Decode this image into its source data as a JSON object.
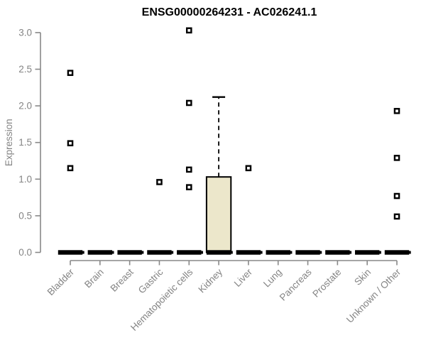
{
  "chart_data": {
    "type": "boxplot",
    "title": "ENSG00000264231 - AC026241.1",
    "xlabel": "",
    "ylabel": "Expression",
    "ylim": [
      0,
      3.05
    ],
    "grid": false,
    "legend": false,
    "yticks": [
      {
        "value": 0.0,
        "label": "0.0"
      },
      {
        "value": 0.5,
        "label": "0.5"
      },
      {
        "value": 1.0,
        "label": "1.0"
      },
      {
        "value": 1.5,
        "label": "1.5"
      },
      {
        "value": 2.0,
        "label": "2.0"
      },
      {
        "value": 2.5,
        "label": "2.5"
      },
      {
        "value": 3.0,
        "label": "3.0"
      }
    ],
    "colors": {
      "box_fill": "#ECE7CB",
      "box_stroke": "#000000",
      "median": "#000000",
      "axis": "#888888",
      "tick_label": "#848484",
      "title": "#000000",
      "outlier": "#000000"
    },
    "categories": [
      {
        "label": "Bladder",
        "q1": 0,
        "median": 0,
        "q3": 0,
        "whisker_high": null,
        "outliers": [
          2.45,
          1.49,
          1.15
        ]
      },
      {
        "label": "Brain",
        "q1": 0,
        "median": 0,
        "q3": 0,
        "whisker_high": null,
        "outliers": []
      },
      {
        "label": "Breast",
        "q1": 0,
        "median": 0,
        "q3": 0,
        "whisker_high": null,
        "outliers": []
      },
      {
        "label": "Gastric",
        "q1": 0,
        "median": 0,
        "q3": 0,
        "whisker_high": null,
        "outliers": [
          0.96
        ]
      },
      {
        "label": "Hematopoietic cells",
        "q1": 0,
        "median": 0,
        "q3": 0,
        "whisker_high": null,
        "outliers": [
          3.03,
          2.04,
          1.13,
          0.89
        ]
      },
      {
        "label": "Kidney",
        "q1": 0,
        "median": 0,
        "q3": 1.03,
        "whisker_high": 2.12,
        "outliers": []
      },
      {
        "label": "Liver",
        "q1": 0,
        "median": 0,
        "q3": 0,
        "whisker_high": null,
        "outliers": [
          1.15
        ]
      },
      {
        "label": "Lung",
        "q1": 0,
        "median": 0,
        "q3": 0,
        "whisker_high": null,
        "outliers": []
      },
      {
        "label": "Pancreas",
        "q1": 0,
        "median": 0,
        "q3": 0,
        "whisker_high": null,
        "outliers": []
      },
      {
        "label": "Prostate",
        "q1": 0,
        "median": 0,
        "q3": 0,
        "whisker_high": null,
        "outliers": []
      },
      {
        "label": "Skin",
        "q1": 0,
        "median": 0,
        "q3": 0,
        "whisker_high": null,
        "outliers": []
      },
      {
        "label": "Unknown / Other",
        "q1": 0,
        "median": 0,
        "q3": 0,
        "whisker_high": null,
        "outliers": [
          1.93,
          1.29,
          0.77,
          0.49
        ]
      }
    ]
  }
}
